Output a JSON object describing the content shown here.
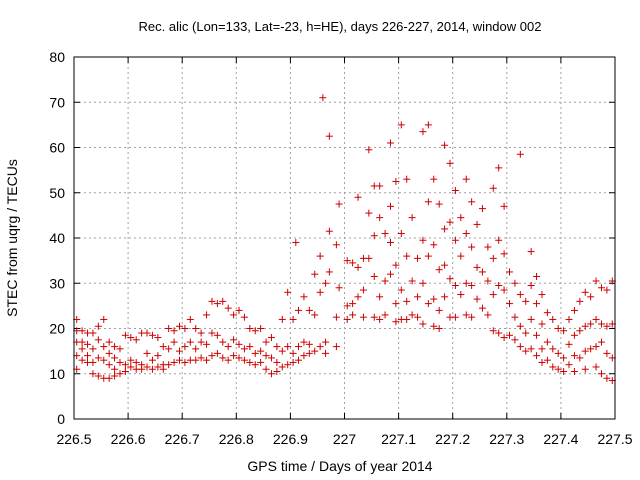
{
  "chart_data": {
    "type": "scatter",
    "title": "Rec. alic (Lon=133, Lat=-23, h=HE), days 226-227, 2014, window 002",
    "xlabel": "GPS time / Days of year 2014",
    "ylabel": "STEC from uqrg / TECUs",
    "xlim": [
      226.5,
      227.5
    ],
    "ylim": [
      0,
      80
    ],
    "grid": true,
    "marker": "+",
    "color": "#cc0000",
    "x_ticks": [
      {
        "value": 226.5,
        "label": "226.5"
      },
      {
        "value": 226.6,
        "label": "226.6"
      },
      {
        "value": 226.7,
        "label": "226.7"
      },
      {
        "value": 226.8,
        "label": "226.8"
      },
      {
        "value": 226.9,
        "label": "226.9"
      },
      {
        "value": 227.0,
        "label": "227"
      },
      {
        "value": 227.1,
        "label": "227.1"
      },
      {
        "value": 227.2,
        "label": "227.2"
      },
      {
        "value": 227.3,
        "label": "227.3"
      },
      {
        "value": 227.4,
        "label": "227.4"
      },
      {
        "value": 227.5,
        "label": "227.5"
      }
    ],
    "y_ticks": [
      {
        "value": 0,
        "label": "0"
      },
      {
        "value": 10,
        "label": "10"
      },
      {
        "value": 20,
        "label": "20"
      },
      {
        "value": 30,
        "label": "30"
      },
      {
        "value": 40,
        "label": "40"
      },
      {
        "value": 50,
        "label": "50"
      },
      {
        "value": 60,
        "label": "60"
      },
      {
        "value": 70,
        "label": "70"
      },
      {
        "value": 80,
        "label": "80"
      }
    ],
    "points": [
      [
        226.505,
        22.0
      ],
      [
        226.505,
        19.5
      ],
      [
        226.505,
        17.0
      ],
      [
        226.505,
        14.0
      ],
      [
        226.505,
        11.0
      ],
      [
        226.515,
        19.5
      ],
      [
        226.515,
        17.0
      ],
      [
        226.515,
        15.5
      ],
      [
        226.515,
        13.0
      ],
      [
        226.525,
        19.0
      ],
      [
        226.525,
        16.5
      ],
      [
        226.525,
        14.0
      ],
      [
        226.525,
        12.5
      ],
      [
        226.535,
        19.0
      ],
      [
        226.535,
        15.5
      ],
      [
        226.535,
        12.5
      ],
      [
        226.535,
        10.0
      ],
      [
        226.545,
        20.5
      ],
      [
        226.545,
        17.5
      ],
      [
        226.545,
        13.5
      ],
      [
        226.545,
        9.5
      ],
      [
        226.555,
        22.0
      ],
      [
        226.555,
        16.0
      ],
      [
        226.555,
        13.0
      ],
      [
        226.555,
        9.0
      ],
      [
        226.565,
        17.0
      ],
      [
        226.565,
        14.5
      ],
      [
        226.565,
        12.0
      ],
      [
        226.565,
        9.0
      ],
      [
        226.575,
        16.0
      ],
      [
        226.575,
        13.5
      ],
      [
        226.575,
        11.0
      ],
      [
        226.575,
        9.5
      ],
      [
        226.585,
        15.5
      ],
      [
        226.585,
        12.5
      ],
      [
        226.585,
        10.0
      ],
      [
        226.595,
        18.5
      ],
      [
        226.595,
        12.0
      ],
      [
        226.595,
        10.5
      ],
      [
        226.605,
        18.0
      ],
      [
        226.605,
        13.0
      ],
      [
        226.605,
        11.5
      ],
      [
        226.615,
        17.5
      ],
      [
        226.615,
        12.5
      ],
      [
        226.615,
        11.0
      ],
      [
        226.625,
        19.0
      ],
      [
        226.625,
        12.0
      ],
      [
        226.625,
        11.0
      ],
      [
        226.635,
        19.0
      ],
      [
        226.635,
        14.5
      ],
      [
        226.635,
        11.5
      ],
      [
        226.645,
        18.5
      ],
      [
        226.645,
        13.0
      ],
      [
        226.645,
        11.0
      ],
      [
        226.655,
        18.0
      ],
      [
        226.655,
        14.0
      ],
      [
        226.655,
        11.5
      ],
      [
        226.665,
        16.0
      ],
      [
        226.665,
        12.0
      ],
      [
        226.665,
        11.0
      ],
      [
        226.675,
        20.0
      ],
      [
        226.675,
        15.5
      ],
      [
        226.675,
        12.0
      ],
      [
        226.685,
        19.5
      ],
      [
        226.685,
        17.0
      ],
      [
        226.685,
        12.5
      ],
      [
        226.695,
        20.5
      ],
      [
        226.695,
        15.0
      ],
      [
        226.695,
        13.0
      ],
      [
        226.705,
        20.0
      ],
      [
        226.705,
        16.0
      ],
      [
        226.705,
        12.5
      ],
      [
        226.715,
        22.0
      ],
      [
        226.715,
        17.0
      ],
      [
        226.715,
        13.0
      ],
      [
        226.725,
        20.0
      ],
      [
        226.725,
        15.5
      ],
      [
        226.725,
        13.0
      ],
      [
        226.735,
        19.0
      ],
      [
        226.735,
        17.0
      ],
      [
        226.735,
        13.5
      ],
      [
        226.745,
        23.0
      ],
      [
        226.745,
        16.5
      ],
      [
        226.745,
        13.0
      ],
      [
        226.755,
        26.0
      ],
      [
        226.755,
        19.0
      ],
      [
        226.755,
        14.0
      ],
      [
        226.765,
        25.5
      ],
      [
        226.765,
        18.5
      ],
      [
        226.765,
        14.5
      ],
      [
        226.775,
        26.0
      ],
      [
        226.775,
        17.0
      ],
      [
        226.775,
        13.5
      ],
      [
        226.785,
        24.5
      ],
      [
        226.785,
        16.0
      ],
      [
        226.785,
        13.0
      ],
      [
        226.795,
        23.0
      ],
      [
        226.795,
        17.5
      ],
      [
        226.795,
        14.0
      ],
      [
        226.805,
        24.0
      ],
      [
        226.805,
        16.5
      ],
      [
        226.805,
        13.5
      ],
      [
        226.815,
        22.5
      ],
      [
        226.815,
        15.5
      ],
      [
        226.815,
        13.0
      ],
      [
        226.825,
        20.0
      ],
      [
        226.825,
        16.0
      ],
      [
        226.825,
        12.5
      ],
      [
        226.835,
        19.5
      ],
      [
        226.835,
        14.5
      ],
      [
        226.835,
        12.0
      ],
      [
        226.845,
        20.0
      ],
      [
        226.845,
        15.0
      ],
      [
        226.845,
        12.5
      ],
      [
        226.855,
        17.0
      ],
      [
        226.855,
        14.0
      ],
      [
        226.855,
        11.0
      ],
      [
        226.865,
        18.0
      ],
      [
        226.865,
        13.5
      ],
      [
        226.865,
        10.0
      ],
      [
        226.875,
        16.0
      ],
      [
        226.875,
        12.5
      ],
      [
        226.875,
        10.5
      ],
      [
        226.885,
        22.0
      ],
      [
        226.885,
        15.0
      ],
      [
        226.885,
        11.5
      ],
      [
        226.895,
        28.0
      ],
      [
        226.895,
        16.0
      ],
      [
        226.895,
        12.0
      ],
      [
        226.905,
        22.0
      ],
      [
        226.905,
        14.5
      ],
      [
        226.905,
        12.5
      ],
      [
        226.915,
        24.0
      ],
      [
        226.915,
        16.0
      ],
      [
        226.915,
        13.0
      ],
      [
        226.91,
        39.0
      ],
      [
        226.925,
        27.0
      ],
      [
        226.925,
        17.0
      ],
      [
        226.925,
        14.0
      ],
      [
        226.935,
        24.0
      ],
      [
        226.935,
        16.5
      ],
      [
        226.935,
        14.5
      ],
      [
        226.945,
        32.0
      ],
      [
        226.945,
        23.0
      ],
      [
        226.945,
        15.0
      ],
      [
        226.955,
        28.0
      ],
      [
        226.955,
        16.0
      ],
      [
        226.955,
        36.0
      ],
      [
        226.96,
        71.0
      ],
      [
        226.965,
        30.0
      ],
      [
        226.965,
        17.0
      ],
      [
        226.965,
        14.5
      ],
      [
        226.972,
        62.5
      ],
      [
        226.972,
        41.5
      ],
      [
        226.972,
        32.5
      ],
      [
        226.985,
        38.5
      ],
      [
        226.985,
        22.5
      ],
      [
        226.985,
        16.0
      ],
      [
        226.99,
        47.5
      ],
      [
        226.99,
        29.0
      ],
      [
        227.005,
        35.0
      ],
      [
        227.005,
        25.0
      ],
      [
        227.005,
        22.0
      ],
      [
        227.015,
        34.5
      ],
      [
        227.015,
        25.5
      ],
      [
        227.015,
        23.0
      ],
      [
        227.025,
        49.0
      ],
      [
        227.025,
        33.5
      ],
      [
        227.025,
        27.0
      ],
      [
        227.035,
        35.5
      ],
      [
        227.035,
        28.5
      ],
      [
        227.035,
        22.5
      ],
      [
        227.045,
        59.5
      ],
      [
        227.045,
        45.5
      ],
      [
        227.045,
        35.5
      ],
      [
        227.055,
        51.5
      ],
      [
        227.055,
        40.5
      ],
      [
        227.055,
        31.5
      ],
      [
        227.055,
        22.5
      ],
      [
        227.065,
        51.5
      ],
      [
        227.065,
        44.5
      ],
      [
        227.065,
        27.0
      ],
      [
        227.065,
        22.0
      ],
      [
        227.075,
        41.0
      ],
      [
        227.075,
        30.5
      ],
      [
        227.075,
        23.0
      ],
      [
        227.085,
        61.0
      ],
      [
        227.085,
        47.0
      ],
      [
        227.085,
        39.0
      ],
      [
        227.085,
        32.0
      ],
      [
        227.095,
        52.5
      ],
      [
        227.095,
        34.0
      ],
      [
        227.095,
        25.5
      ],
      [
        227.095,
        21.5
      ],
      [
        227.105,
        65.0
      ],
      [
        227.105,
        41.0
      ],
      [
        227.105,
        28.5
      ],
      [
        227.105,
        22.0
      ],
      [
        227.115,
        53.0
      ],
      [
        227.115,
        36.0
      ],
      [
        227.115,
        26.0
      ],
      [
        227.115,
        22.0
      ],
      [
        227.125,
        44.5
      ],
      [
        227.125,
        30.5
      ],
      [
        227.125,
        23.0
      ],
      [
        227.135,
        35.5
      ],
      [
        227.135,
        27.0
      ],
      [
        227.135,
        22.5
      ],
      [
        227.145,
        63.5
      ],
      [
        227.145,
        39.5
      ],
      [
        227.145,
        30.0
      ],
      [
        227.145,
        21.0
      ],
      [
        227.155,
        65.0
      ],
      [
        227.155,
        48.0
      ],
      [
        227.155,
        36.0
      ],
      [
        227.155,
        25.5
      ],
      [
        227.165,
        53.0
      ],
      [
        227.165,
        38.5
      ],
      [
        227.165,
        26.5
      ],
      [
        227.165,
        20.5
      ],
      [
        227.175,
        47.5
      ],
      [
        227.175,
        33.0
      ],
      [
        227.175,
        24.0
      ],
      [
        227.175,
        20.0
      ],
      [
        227.185,
        60.5
      ],
      [
        227.185,
        42.0
      ],
      [
        227.185,
        34.0
      ],
      [
        227.185,
        27.0
      ],
      [
        227.195,
        56.5
      ],
      [
        227.195,
        43.5
      ],
      [
        227.195,
        31.0
      ],
      [
        227.195,
        22.5
      ],
      [
        227.205,
        50.5
      ],
      [
        227.205,
        39.5
      ],
      [
        227.205,
        29.5
      ],
      [
        227.205,
        22.5
      ],
      [
        227.215,
        44.5
      ],
      [
        227.215,
        36.0
      ],
      [
        227.215,
        27.5
      ],
      [
        227.225,
        53.0
      ],
      [
        227.225,
        41.0
      ],
      [
        227.225,
        30.0
      ],
      [
        227.225,
        23.0
      ],
      [
        227.235,
        48.0
      ],
      [
        227.235,
        38.0
      ],
      [
        227.235,
        29.5
      ],
      [
        227.235,
        22.5
      ],
      [
        227.245,
        43.0
      ],
      [
        227.245,
        33.5
      ],
      [
        227.245,
        26.5
      ],
      [
        227.255,
        46.5
      ],
      [
        227.255,
        32.5
      ],
      [
        227.255,
        24.5
      ],
      [
        227.265,
        38.0
      ],
      [
        227.265,
        30.5
      ],
      [
        227.265,
        23.0
      ],
      [
        227.275,
        51.0
      ],
      [
        227.275,
        35.5
      ],
      [
        227.275,
        27.5
      ],
      [
        227.275,
        19.5
      ],
      [
        227.285,
        55.5
      ],
      [
        227.285,
        39.5
      ],
      [
        227.285,
        29.5
      ],
      [
        227.285,
        19.0
      ],
      [
        227.295,
        47.0
      ],
      [
        227.295,
        36.5
      ],
      [
        227.295,
        28.5
      ],
      [
        227.295,
        18.0
      ],
      [
        227.305,
        32.5
      ],
      [
        227.305,
        25.5
      ],
      [
        227.305,
        18.5
      ],
      [
        227.315,
        30.0
      ],
      [
        227.315,
        22.5
      ],
      [
        227.315,
        17.5
      ],
      [
        227.325,
        58.5
      ],
      [
        227.325,
        27.5
      ],
      [
        227.325,
        20.5
      ],
      [
        227.325,
        16.0
      ],
      [
        227.335,
        26.0
      ],
      [
        227.335,
        19.0
      ],
      [
        227.335,
        15.0
      ],
      [
        227.345,
        37.0
      ],
      [
        227.345,
        29.5
      ],
      [
        227.345,
        22.0
      ],
      [
        227.345,
        15.5
      ],
      [
        227.355,
        31.5
      ],
      [
        227.355,
        25.5
      ],
      [
        227.355,
        18.5
      ],
      [
        227.355,
        14.0
      ],
      [
        227.365,
        27.5
      ],
      [
        227.365,
        21.0
      ],
      [
        227.365,
        15.5
      ],
      [
        227.365,
        12.5
      ],
      [
        227.375,
        23.5
      ],
      [
        227.375,
        17.0
      ],
      [
        227.375,
        13.0
      ],
      [
        227.385,
        22.0
      ],
      [
        227.385,
        15.5
      ],
      [
        227.385,
        11.5
      ],
      [
        227.395,
        20.0
      ],
      [
        227.395,
        14.5
      ],
      [
        227.395,
        11.0
      ],
      [
        227.405,
        19.5
      ],
      [
        227.405,
        13.5
      ],
      [
        227.405,
        10.5
      ],
      [
        227.415,
        22.0
      ],
      [
        227.415,
        16.5
      ],
      [
        227.415,
        12.0
      ],
      [
        227.425,
        24.0
      ],
      [
        227.425,
        18.5
      ],
      [
        227.425,
        14.0
      ],
      [
        227.425,
        10.5
      ],
      [
        227.435,
        26.0
      ],
      [
        227.435,
        19.5
      ],
      [
        227.435,
        13.5
      ],
      [
        227.445,
        28.0
      ],
      [
        227.445,
        20.5
      ],
      [
        227.445,
        15.0
      ],
      [
        227.445,
        11.0
      ],
      [
        227.455,
        27.0
      ],
      [
        227.455,
        21.0
      ],
      [
        227.455,
        15.5
      ],
      [
        227.465,
        30.5
      ],
      [
        227.465,
        22.0
      ],
      [
        227.465,
        16.0
      ],
      [
        227.465,
        11.5
      ],
      [
        227.475,
        29.0
      ],
      [
        227.475,
        21.0
      ],
      [
        227.475,
        17.0
      ],
      [
        227.475,
        10.0
      ],
      [
        227.485,
        28.5
      ],
      [
        227.485,
        20.5
      ],
      [
        227.485,
        14.5
      ],
      [
        227.485,
        9.0
      ],
      [
        227.495,
        30.5
      ],
      [
        227.495,
        21.0
      ],
      [
        227.495,
        13.5
      ],
      [
        227.495,
        8.5
      ]
    ]
  }
}
